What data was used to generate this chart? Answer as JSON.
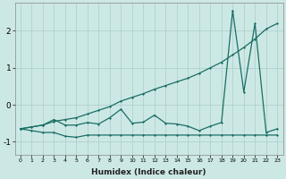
{
  "xlabel": "Humidex (Indice chaleur)",
  "background_color": "#cce8e5",
  "grid_color": "#aaccca",
  "line_color": "#1a6e64",
  "xlim": [
    -0.5,
    23.5
  ],
  "ylim": [
    -1.35,
    2.75
  ],
  "yticks": [
    -1,
    0,
    1,
    2
  ],
  "line_bottom_y": [
    -0.65,
    -0.7,
    -0.75,
    -0.75,
    -0.85,
    -0.88,
    -0.82,
    -0.82,
    -0.82,
    -0.82,
    -0.82,
    -0.82,
    -0.82,
    -0.82,
    -0.82,
    -0.82,
    -0.82,
    -0.82,
    -0.82,
    -0.82,
    -0.82,
    -0.82,
    -0.82,
    -0.82
  ],
  "line_diag_y": [
    -0.65,
    -0.6,
    -0.55,
    -0.45,
    -0.4,
    -0.35,
    -0.25,
    -0.15,
    -0.05,
    0.1,
    0.2,
    0.3,
    0.42,
    0.52,
    0.62,
    0.72,
    0.85,
    1.0,
    1.15,
    1.35,
    1.55,
    1.78,
    2.05,
    2.2
  ],
  "line_jagged_y": [
    -0.65,
    -0.6,
    -0.55,
    -0.4,
    -0.55,
    -0.55,
    -0.48,
    -0.52,
    -0.35,
    -0.12,
    -0.5,
    -0.47,
    -0.28,
    -0.5,
    -0.52,
    -0.58,
    -0.7,
    -0.58,
    -0.48,
    2.55,
    0.35,
    2.2,
    -0.75,
    -0.65
  ]
}
